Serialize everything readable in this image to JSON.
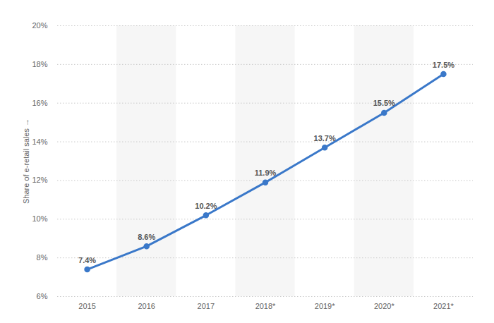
{
  "chart_data": {
    "type": "line",
    "categories": [
      "2015",
      "2016",
      "2017",
      "2018*",
      "2019*",
      "2020*",
      "2021*"
    ],
    "values": [
      7.4,
      8.6,
      10.2,
      11.9,
      13.7,
      15.5,
      17.5
    ],
    "value_labels": [
      "7.4%",
      "8.6%",
      "10.2%",
      "11.9%",
      "13.7%",
      "15.5%",
      "17.5%"
    ],
    "ylabel": "Share of e-retail sales",
    "ylim": [
      6,
      20
    ],
    "yticks": [
      {
        "value": 6,
        "label": "6%"
      },
      {
        "value": 8,
        "label": "8%"
      },
      {
        "value": 10,
        "label": "10%"
      },
      {
        "value": 12,
        "label": "12%"
      },
      {
        "value": 14,
        "label": "14%"
      },
      {
        "value": 16,
        "label": "16%"
      },
      {
        "value": 18,
        "label": "18%"
      },
      {
        "value": 20,
        "label": "20%"
      }
    ],
    "grid": true,
    "data_labels": true,
    "color": "#3a78c9",
    "marker": "circle"
  }
}
